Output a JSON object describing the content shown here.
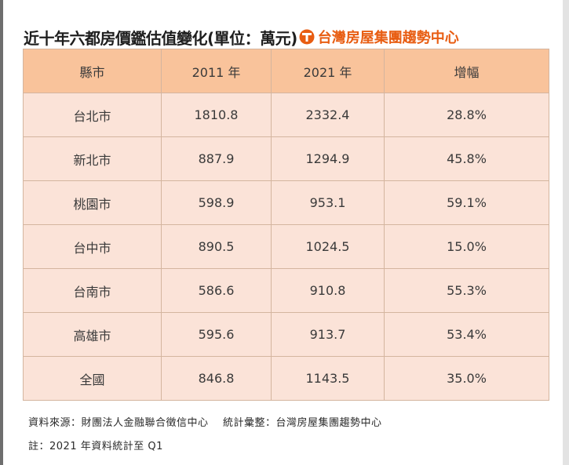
{
  "title": "近十年六都房價鑑估值變化(單位：萬元)",
  "brand": "台灣房屋集團趨勢中心",
  "colors": {
    "header_bg": "#f9c39b",
    "cell_bg": "#fbe3d8",
    "border": "#d4b59f",
    "brand": "#e85d12"
  },
  "chart_data": {
    "type": "table",
    "title": "近十年六都房價鑑估值變化(單位：萬元)",
    "columns": [
      "縣市",
      "2011 年",
      "2021 年",
      "增幅"
    ],
    "rows": [
      [
        "台北市",
        "1810.8",
        "2332.4",
        "28.8%"
      ],
      [
        "新北市",
        "887.9",
        "1294.9",
        "45.8%"
      ],
      [
        "桃園市",
        "598.9",
        "953.1",
        "59.1%"
      ],
      [
        "台中市",
        "890.5",
        "1024.5",
        "15.0%"
      ],
      [
        "台南市",
        "586.6",
        "910.8",
        "55.3%"
      ],
      [
        "高雄市",
        "595.6",
        "913.7",
        "53.4%"
      ],
      [
        "全國",
        "846.8",
        "1143.5",
        "35.0%"
      ]
    ]
  },
  "footnotes": {
    "source": "資料來源：財團法人金融聯合徵信中心",
    "compiled": "統計彙整：台灣房屋集團趨勢中心",
    "note": "註：2021 年資料統計至 Q1"
  }
}
